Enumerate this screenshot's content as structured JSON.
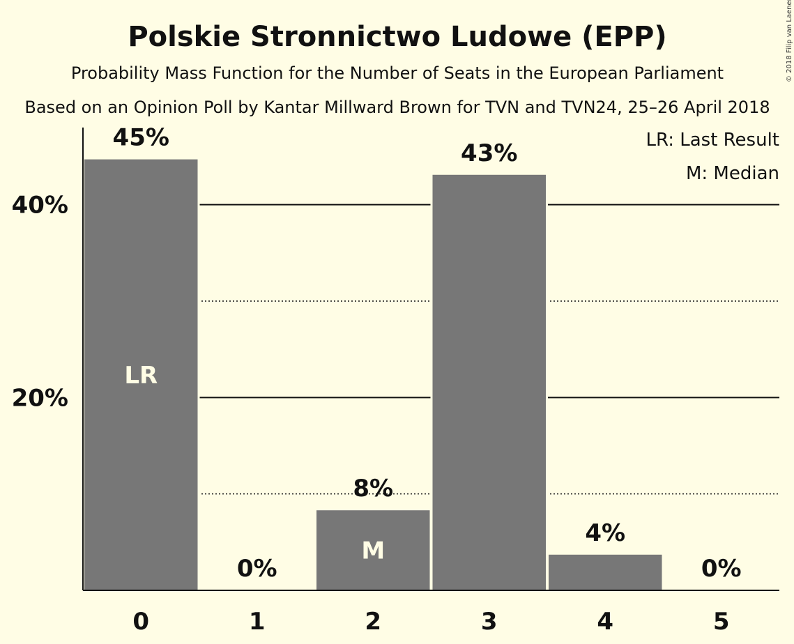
{
  "chart_data": {
    "type": "bar",
    "title": "Polskie Stronnictwo Ludowe (EPP)",
    "subtitle": "Probability Mass Function for the Number of Seats in the European Parliament",
    "subtitle2": "Based on an Opinion Poll by Kantar Millward Brown for TVN and TVN24, 25–26 April 2018",
    "copyright": "© 2018 Filip van Laenen",
    "categories": [
      "0",
      "1",
      "2",
      "3",
      "4",
      "5"
    ],
    "values": [
      44.7,
      0,
      8.3,
      43.1,
      3.7,
      0
    ],
    "value_labels": [
      "45%",
      "0%",
      "8%",
      "43%",
      "4%",
      "0%"
    ],
    "ylim": [
      0,
      48
    ],
    "y_ticks": [
      {
        "value": 20,
        "label": "20%"
      },
      {
        "value": 40,
        "label": "40%"
      }
    ],
    "minor_gridlines": [
      10,
      30
    ],
    "markers": [
      {
        "category": "0",
        "text": "LR"
      },
      {
        "category": "2",
        "text": "M"
      }
    ],
    "legend": {
      "position": "top-right",
      "items": [
        "LR: Last Result",
        "M: Median"
      ]
    },
    "bar_color": "#777777",
    "background": "#fffde5",
    "grid": true
  }
}
